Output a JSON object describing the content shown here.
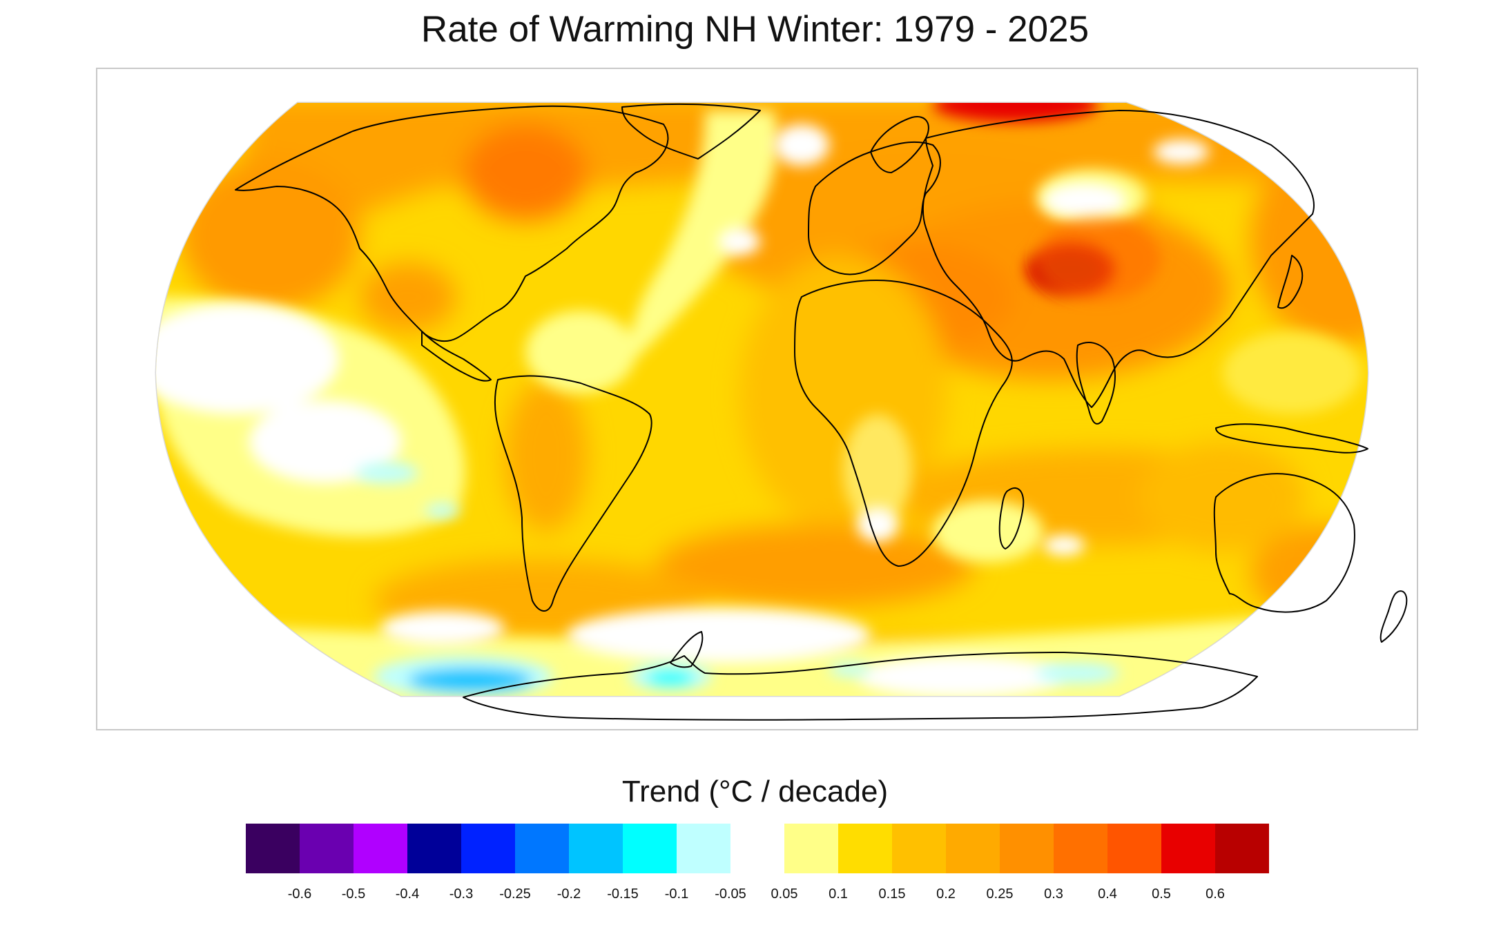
{
  "title": "Rate of Warming NH Winter: 1979 - 2025",
  "legend": {
    "title": "Trend (°C / decade)",
    "bins": [
      {
        "color": "#3a0060"
      },
      {
        "color": "#6a00b0"
      },
      {
        "color": "#b000ff"
      },
      {
        "color": "#000099"
      },
      {
        "color": "#0022ff"
      },
      {
        "color": "#0077ff"
      },
      {
        "color": "#00c4ff"
      },
      {
        "color": "#00ffff"
      },
      {
        "color": "#bfffff"
      },
      {
        "color": "#ffffff"
      },
      {
        "color": "#ffff88"
      },
      {
        "color": "#ffdd00"
      },
      {
        "color": "#ffc000"
      },
      {
        "color": "#ffaa00"
      },
      {
        "color": "#ff9000"
      },
      {
        "color": "#ff7000"
      },
      {
        "color": "#ff5500"
      },
      {
        "color": "#e80000"
      },
      {
        "color": "#b80000"
      }
    ],
    "tick_labels": [
      "-0.6",
      "-0.5",
      "-0.4",
      "-0.3",
      "-0.25",
      "-0.2",
      "-0.15",
      "-0.1",
      "-0.05",
      "0.05",
      "0.1",
      "0.15",
      "0.2",
      "0.25",
      "0.3",
      "0.4",
      "0.5",
      "0.6"
    ]
  },
  "colors": {
    "background": "#ffd700",
    "land_outline": "#000000",
    "frame": "#c8c8c8"
  }
}
